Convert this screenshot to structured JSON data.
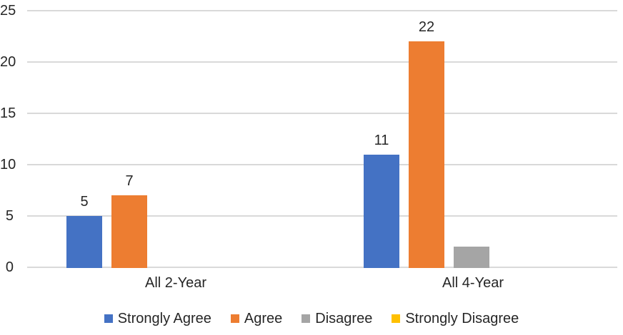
{
  "chart_data": {
    "type": "bar",
    "title": "",
    "categories": [
      "All 2-Year",
      "All 4-Year"
    ],
    "series": [
      {
        "name": "Strongly Agree",
        "color": "#4472C4",
        "values": [
          5,
          11
        ],
        "data_labels": [
          "5",
          "11"
        ]
      },
      {
        "name": "Agree",
        "color": "#ED7D31",
        "values": [
          7,
          22
        ],
        "data_labels": [
          "7",
          "22"
        ]
      },
      {
        "name": "Disagree",
        "color": "#A5A5A5",
        "values": [
          0,
          2
        ],
        "data_labels": [
          "",
          ""
        ]
      },
      {
        "name": "Strongly Disagree",
        "color": "#FFC000",
        "values": [
          0,
          0
        ],
        "data_labels": [
          "",
          ""
        ]
      }
    ],
    "y_axis": {
      "ticks": [
        0,
        5,
        10,
        15,
        20,
        25
      ],
      "min": 0,
      "max": 25
    },
    "grid": true,
    "legend_position": "bottom",
    "colors": {
      "gridline": "#D9D9D9",
      "text": "#262626",
      "background": "#FFFFFF"
    }
  }
}
